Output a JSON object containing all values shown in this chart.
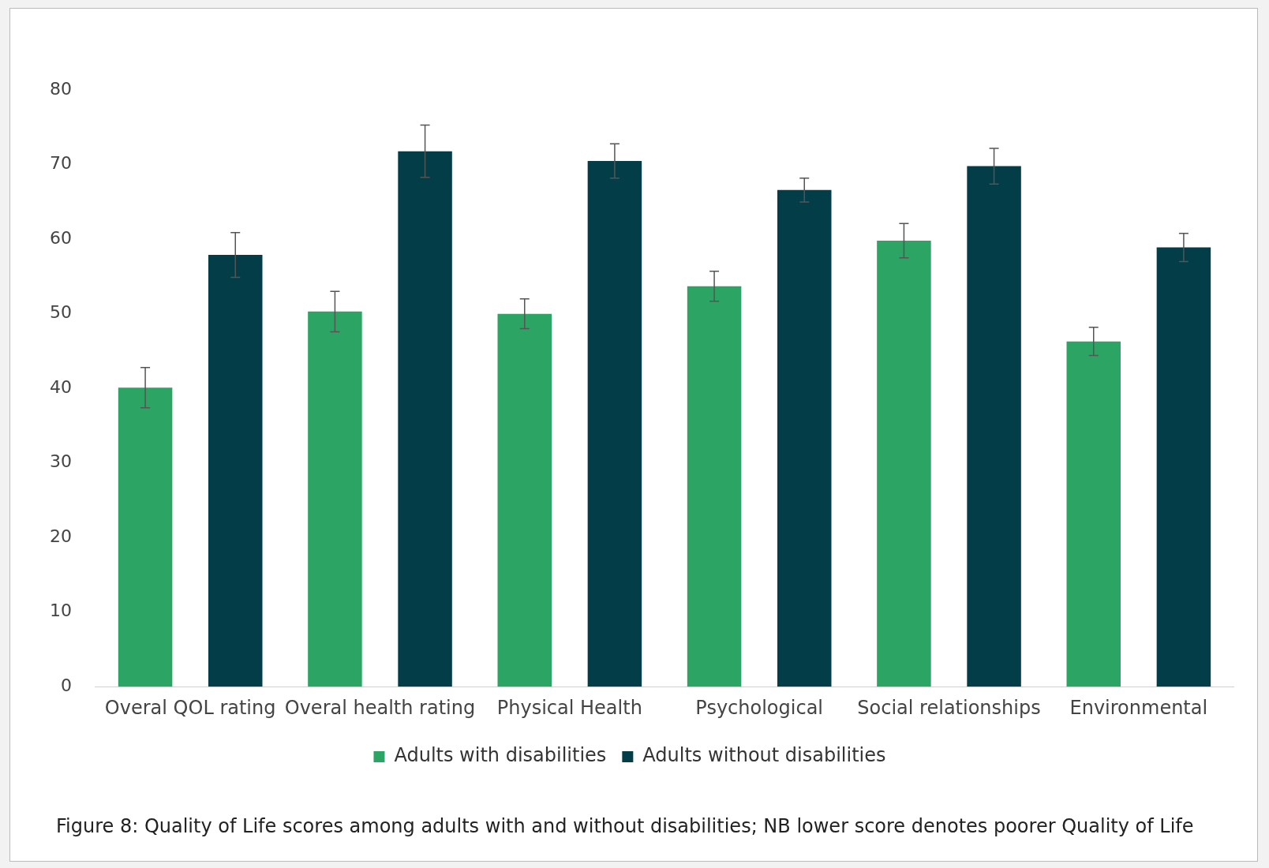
{
  "chart_data": {
    "type": "bar",
    "categories": [
      "Overal QOL rating",
      "Overal health rating",
      "Physical Health",
      "Psychological",
      "Social relationships",
      "Environmental"
    ],
    "series": [
      {
        "name": "Adults with disabilities",
        "color": "#2ca464",
        "values": [
          40.1,
          50.3,
          50.0,
          53.7,
          59.8,
          46.3
        ],
        "errors": [
          2.7,
          2.7,
          2.0,
          2.0,
          2.3,
          1.9
        ]
      },
      {
        "name": "Adults without disabilities",
        "color": "#023d48",
        "values": [
          57.9,
          71.8,
          70.5,
          66.6,
          69.8,
          58.9
        ],
        "errors": [
          3.0,
          3.5,
          2.3,
          1.6,
          2.4,
          1.9
        ]
      }
    ],
    "ylim": [
      0,
      80
    ],
    "yticks": [
      0,
      10,
      20,
      30,
      40,
      50,
      60,
      70,
      80
    ],
    "grid": false,
    "legend": "bottom",
    "annotations": [
      "Figure 8: Quality of Life scores among adults with and without disabilities; NB lower score denotes poorer Quality of Life"
    ]
  }
}
